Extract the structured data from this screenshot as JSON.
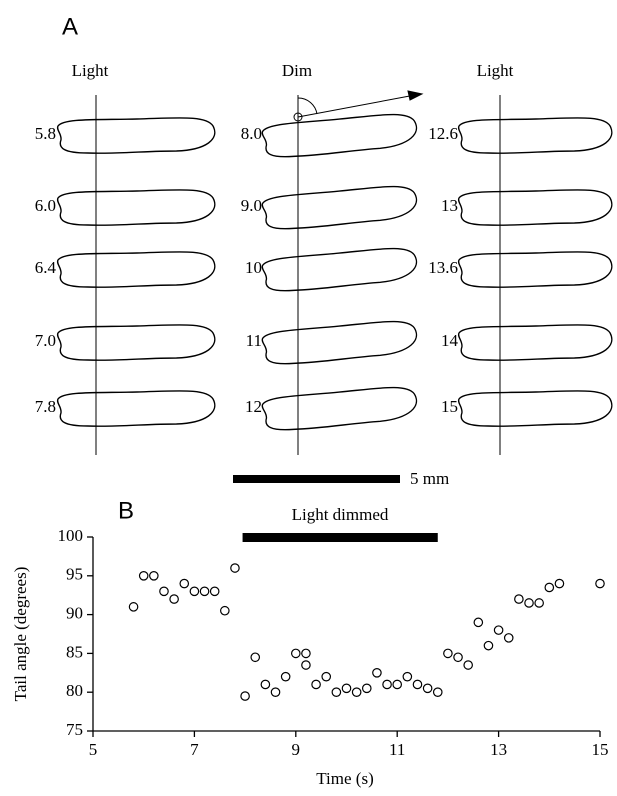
{
  "panel_a": {
    "label": "A",
    "scale_bar": "5 mm",
    "columns": [
      {
        "header": "Light",
        "labels": [
          "5.8",
          "6.0",
          "6.4",
          "7.0",
          "7.8"
        ]
      },
      {
        "header": "Dim",
        "labels": [
          "8.0",
          "9.0",
          "10",
          "11",
          "12"
        ]
      },
      {
        "header": "Light",
        "labels": [
          "12.6",
          "13",
          "13.6",
          "14",
          "15"
        ]
      }
    ]
  },
  "chart_data": {
    "type": "scatter",
    "panel_label": "B",
    "annotation": "Light dimmed",
    "dimmed_span": [
      7.95,
      11.8
    ],
    "x_label": "Time (s)",
    "y_label": "Tail angle (degrees)",
    "x": [
      5.8,
      6.0,
      6.2,
      6.4,
      6.6,
      6.8,
      7.0,
      7.2,
      7.4,
      7.6,
      7.8,
      8.0,
      8.2,
      8.4,
      8.6,
      8.8,
      9.0,
      9.2,
      9.2,
      9.4,
      9.6,
      9.8,
      10.0,
      10.2,
      10.4,
      10.6,
      10.8,
      11.0,
      11.2,
      11.4,
      11.6,
      11.8,
      12.0,
      12.2,
      12.4,
      12.6,
      12.8,
      13.0,
      13.2,
      13.4,
      13.6,
      13.8,
      14.0,
      14.2,
      15.0
    ],
    "values": [
      91,
      95,
      95,
      93,
      92,
      94,
      93,
      93,
      93,
      90.5,
      96,
      79.5,
      84.5,
      81,
      80,
      82,
      85,
      85,
      83.5,
      81,
      82,
      80,
      80.5,
      80,
      80.5,
      82.5,
      81,
      81,
      82,
      81,
      80.5,
      80,
      85,
      84.5,
      83.5,
      89,
      86,
      88,
      87,
      92,
      91.5,
      91.5,
      93.5,
      94,
      94
    ],
    "xlim": [
      5,
      15
    ],
    "xticks": [
      5,
      7,
      9,
      11,
      13,
      15
    ],
    "ylim": [
      75,
      100
    ],
    "yticks": [
      75,
      80,
      85,
      90,
      95,
      100
    ]
  }
}
